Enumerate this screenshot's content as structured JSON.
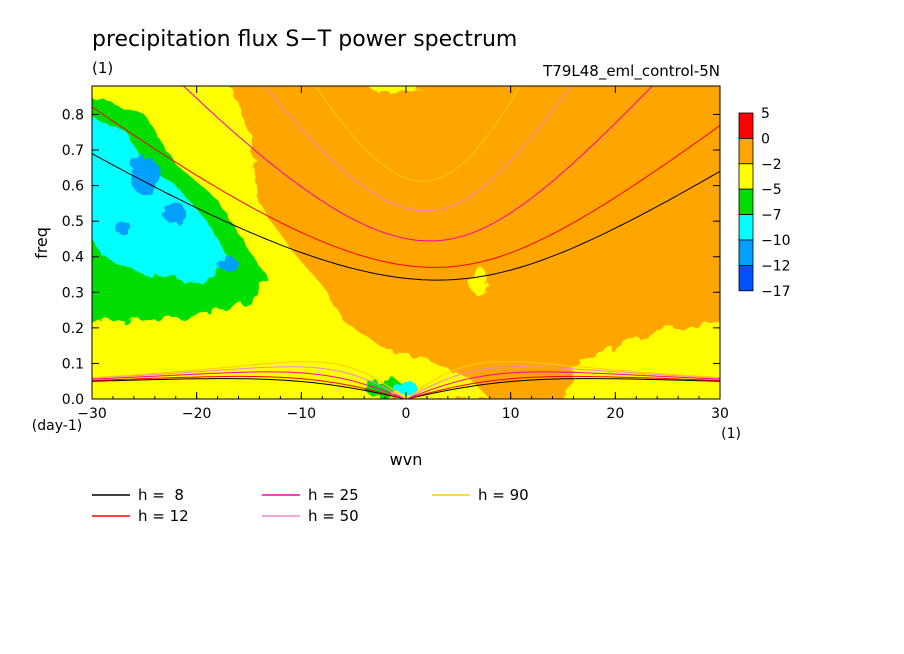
{
  "chart_data": {
    "type": "heatmap",
    "title": "precipitation flux S−T power spectrum",
    "units": "(1)",
    "run": "T79L48_eml_control-5N",
    "xlabel": "wvn",
    "ylabel": "freq",
    "x_unit": "(1)",
    "y_unit": "(day-1)",
    "xlim": [
      -30,
      30
    ],
    "ylim": [
      0.0,
      0.88
    ],
    "x_ticks": [
      -30,
      -20,
      -10,
      0,
      10,
      20,
      30
    ],
    "x_tick_labels": [
      "−30",
      "−20",
      "−10",
      "0",
      "10",
      "20",
      "30"
    ],
    "y_ticks": [
      0.0,
      0.1,
      0.2,
      0.3,
      0.4,
      0.5,
      0.6,
      0.7,
      0.8
    ],
    "y_tick_labels": [
      "0.0",
      "0.1",
      "0.2",
      "0.3",
      "0.4",
      "0.5",
      "0.6",
      "0.7",
      "0.8"
    ],
    "colorbar": {
      "levels": [
        "5",
        "0",
        "−2",
        "−5",
        "−7",
        "−10",
        "−12",
        "−17"
      ],
      "colors": [
        "#ff0000",
        "#ffa500",
        "#ffff00",
        "#00dd00",
        "#00ffff",
        "#00a0ff",
        "#0050ff"
      ]
    },
    "field_regions": [
      {
        "name": "background",
        "level": "-2 to 0",
        "color": "#ffa500"
      },
      {
        "name": "low-wavenumber band",
        "level": "-5 to -2",
        "color": "#ffff00"
      },
      {
        "name": "westward maximum",
        "level": "-7 to -5",
        "color": "#00dd00"
      },
      {
        "name": "westward core",
        "level": "-10 to -7",
        "color": "#00ffff"
      },
      {
        "name": "westward peak",
        "level": "-12 to -10",
        "color": "#00a0ff"
      },
      {
        "name": "eastward high wvn low freq",
        "level": "-5 to -2",
        "color": "#ffff00"
      }
    ],
    "dispersion_curves": [
      {
        "h": 8,
        "label": "h =  8",
        "color": "#000000",
        "modes": [
          "low-freq",
          "high-freq"
        ]
      },
      {
        "h": 12,
        "label": "h = 12",
        "color": "#ff0000",
        "modes": [
          "low-freq",
          "high-freq"
        ]
      },
      {
        "h": 25,
        "label": "h = 25",
        "color": "#ff00aa",
        "modes": [
          "low-freq",
          "high-freq"
        ]
      },
      {
        "h": 50,
        "label": "h = 50",
        "color": "#ee88cc",
        "modes": [
          "low-freq",
          "high-freq"
        ]
      },
      {
        "h": 90,
        "label": "h = 90",
        "color": "#ffcc00",
        "modes": [
          "low-freq",
          "high-freq"
        ]
      }
    ]
  }
}
